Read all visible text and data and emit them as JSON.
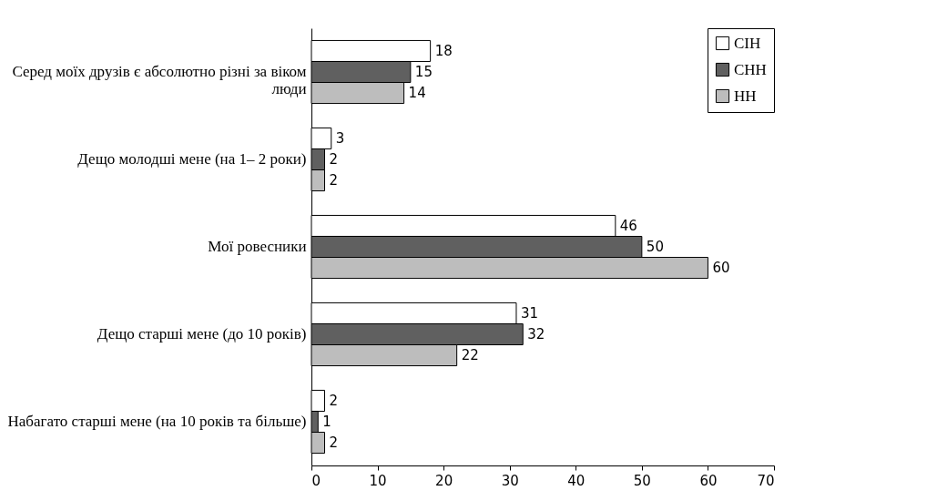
{
  "chart_data": {
    "type": "bar",
    "orientation": "horizontal",
    "categories": [
      "Серед моїх друзів є абсолютно різні за віком люди",
      "Дещо молодші мене (на 1– 2 роки)",
      "Мої ровесники",
      "Дещо старші мене (до 10 років)",
      "Набагато старші мене (на 10 років та більше)"
    ],
    "series": [
      {
        "name": "СІН",
        "color": "#ffffff",
        "values": [
          18,
          3,
          46,
          31,
          2
        ]
      },
      {
        "name": "СНН",
        "color": "#606060",
        "values": [
          15,
          2,
          50,
          32,
          1
        ]
      },
      {
        "name": "НН",
        "color": "#bdbdbd",
        "values": [
          14,
          2,
          60,
          22,
          2
        ]
      }
    ],
    "xlim": [
      0,
      70
    ],
    "xticks": [
      0,
      10,
      20,
      30,
      40,
      50,
      60,
      70
    ],
    "data_labels": true,
    "legend": "top right",
    "grid": false
  }
}
